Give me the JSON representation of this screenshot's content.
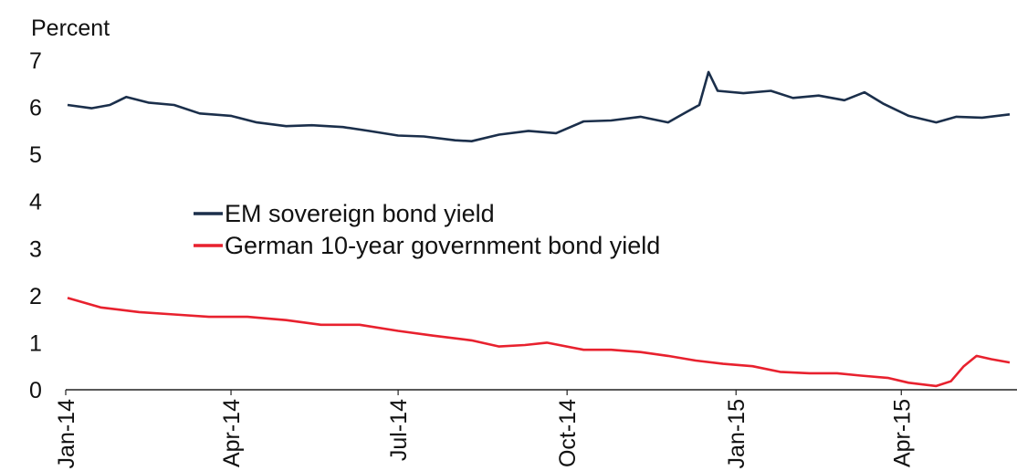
{
  "chart_data": {
    "type": "line",
    "title": "",
    "ylabel": "Percent",
    "xlabel": "",
    "ylim": [
      0,
      7
    ],
    "yticks": [
      0,
      1,
      2,
      3,
      4,
      5,
      6,
      7
    ],
    "xticks": [
      "Jan-14",
      "Apr-14",
      "Jul-14",
      "Oct-14",
      "Jan-15",
      "Apr-15"
    ],
    "grid": false,
    "legend_position": "center-left",
    "series": [
      {
        "name": "EM sovereign bond yield",
        "color": "#1b2f4b",
        "points": [
          [
            "2014-01-02",
            6.05
          ],
          [
            "2014-01-15",
            5.98
          ],
          [
            "2014-01-25",
            6.05
          ],
          [
            "2014-02-03",
            6.22
          ],
          [
            "2014-02-15",
            6.1
          ],
          [
            "2014-03-01",
            6.05
          ],
          [
            "2014-03-15",
            5.87
          ],
          [
            "2014-04-01",
            5.82
          ],
          [
            "2014-04-15",
            5.68
          ],
          [
            "2014-05-01",
            5.6
          ],
          [
            "2014-05-15",
            5.62
          ],
          [
            "2014-06-01",
            5.58
          ],
          [
            "2014-06-15",
            5.5
          ],
          [
            "2014-07-01",
            5.4
          ],
          [
            "2014-07-15",
            5.38
          ],
          [
            "2014-08-01",
            5.3
          ],
          [
            "2014-08-10",
            5.28
          ],
          [
            "2014-08-25",
            5.42
          ],
          [
            "2014-09-10",
            5.5
          ],
          [
            "2014-09-25",
            5.45
          ],
          [
            "2014-10-10",
            5.7
          ],
          [
            "2014-10-25",
            5.72
          ],
          [
            "2014-11-10",
            5.8
          ],
          [
            "2014-11-25",
            5.68
          ],
          [
            "2014-12-05",
            5.9
          ],
          [
            "2014-12-12",
            6.05
          ],
          [
            "2014-12-17",
            6.75
          ],
          [
            "2014-12-22",
            6.35
          ],
          [
            "2015-01-05",
            6.3
          ],
          [
            "2015-01-20",
            6.35
          ],
          [
            "2015-02-01",
            6.2
          ],
          [
            "2015-02-15",
            6.25
          ],
          [
            "2015-03-01",
            6.15
          ],
          [
            "2015-03-12",
            6.32
          ],
          [
            "2015-03-22",
            6.08
          ],
          [
            "2015-04-05",
            5.82
          ],
          [
            "2015-04-20",
            5.68
          ],
          [
            "2015-05-01",
            5.8
          ],
          [
            "2015-05-15",
            5.78
          ],
          [
            "2015-05-30",
            5.85
          ]
        ]
      },
      {
        "name": "German 10-year government bond yield",
        "color": "#e8212e",
        "points": [
          [
            "2014-01-02",
            1.95
          ],
          [
            "2014-01-20",
            1.75
          ],
          [
            "2014-02-10",
            1.65
          ],
          [
            "2014-03-01",
            1.6
          ],
          [
            "2014-03-20",
            1.55
          ],
          [
            "2014-04-10",
            1.55
          ],
          [
            "2014-05-01",
            1.48
          ],
          [
            "2014-05-20",
            1.38
          ],
          [
            "2014-06-10",
            1.38
          ],
          [
            "2014-07-01",
            1.25
          ],
          [
            "2014-07-20",
            1.15
          ],
          [
            "2014-08-10",
            1.05
          ],
          [
            "2014-08-25",
            0.92
          ],
          [
            "2014-09-08",
            0.95
          ],
          [
            "2014-09-20",
            1.0
          ],
          [
            "2014-10-10",
            0.85
          ],
          [
            "2014-10-25",
            0.85
          ],
          [
            "2014-11-10",
            0.8
          ],
          [
            "2014-11-25",
            0.72
          ],
          [
            "2014-12-10",
            0.62
          ],
          [
            "2014-12-25",
            0.55
          ],
          [
            "2015-01-10",
            0.5
          ],
          [
            "2015-01-25",
            0.38
          ],
          [
            "2015-02-10",
            0.35
          ],
          [
            "2015-02-25",
            0.35
          ],
          [
            "2015-03-10",
            0.3
          ],
          [
            "2015-03-25",
            0.25
          ],
          [
            "2015-04-05",
            0.15
          ],
          [
            "2015-04-20",
            0.08
          ],
          [
            "2015-04-28",
            0.18
          ],
          [
            "2015-05-05",
            0.5
          ],
          [
            "2015-05-12",
            0.72
          ],
          [
            "2015-05-20",
            0.65
          ],
          [
            "2015-05-30",
            0.58
          ]
        ]
      }
    ]
  }
}
